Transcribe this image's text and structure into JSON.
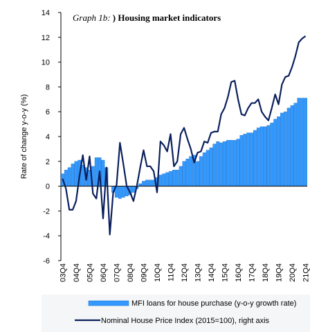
{
  "chart_data": {
    "type": "bar_line",
    "title_label": "Graph 1b:",
    "title": ") Housing market indicators",
    "y_label": "Rate of change y-o-y (%)",
    "categories": [
      "03Q4",
      null,
      null,
      null,
      "04Q4",
      null,
      null,
      null,
      "05Q4",
      null,
      null,
      null,
      "06Q4",
      null,
      null,
      null,
      "07Q4",
      null,
      null,
      null,
      "08Q4",
      null,
      null,
      null,
      "09Q4",
      null,
      null,
      null,
      "10Q4",
      null,
      null,
      null,
      "11Q4",
      null,
      null,
      null,
      "12Q4",
      null,
      null,
      null,
      "13Q4",
      null,
      null,
      null,
      "14Q4",
      null,
      null,
      null,
      "15Q4",
      null,
      null,
      null,
      "16Q4",
      null,
      null,
      null,
      "17Q4",
      null,
      null,
      null,
      "18Q4",
      null,
      null,
      null,
      "19Q4",
      null,
      null,
      null,
      "20Q4",
      null,
      null,
      null,
      "21Q4"
    ],
    "series": [
      {
        "name": "MFI loans for house purchase (y-o-y growth rate)",
        "kind": "bar",
        "color": "#3399ff",
        "values": [
          1.0,
          1.3,
          1.5,
          1.8,
          2.0,
          2.1,
          1.7,
          1.5,
          1.3,
          1.6,
          2.3,
          2.3,
          2.1,
          1.5,
          0.0,
          -0.5,
          -0.9,
          -1.0,
          -0.9,
          -0.8,
          -0.7,
          -0.5,
          -0.2,
          0.2,
          0.4,
          0.5,
          0.5,
          0.5,
          0.7,
          0.9,
          1.0,
          1.1,
          1.2,
          1.3,
          1.3,
          1.6,
          2.0,
          2.2,
          2.4,
          2.5,
          2.0,
          2.4,
          2.7,
          2.9,
          3.1,
          3.4,
          3.6,
          3.5,
          3.6,
          3.7,
          3.7,
          3.7,
          3.8,
          4.1,
          4.2,
          4.3,
          4.3,
          4.5,
          4.7,
          4.8,
          4.8,
          4.9,
          5.1,
          5.4,
          5.6,
          5.9,
          6.0,
          6.3,
          6.5,
          6.7,
          7.1,
          7.1,
          7.1
        ]
      },
      {
        "name": "Nominal House Price Index (2015=100), right axis",
        "kind": "line",
        "color": "#0a1f5c",
        "values": [
          0.6,
          -0.2,
          -1.9,
          -1.9,
          -1.2,
          0.8,
          2.5,
          0.5,
          2.4,
          -0.6,
          -1.0,
          1.2,
          -2.6,
          1.5,
          -3.9,
          -0.5,
          0.1,
          3.5,
          1.8,
          0.0,
          -0.5,
          -1.2,
          0.0,
          1.5,
          2.9,
          1.6,
          1.6,
          1.2,
          -0.5,
          3.6,
          3.3,
          2.8,
          4.2,
          1.6,
          2.0,
          4.2,
          4.7,
          3.8,
          3.0,
          1.9,
          2.7,
          2.8,
          3.6,
          3.5,
          4.3,
          4.4,
          4.4,
          5.8,
          6.3,
          7.2,
          8.4,
          8.5,
          7.0,
          5.8,
          5.7,
          6.3,
          6.7,
          6.7,
          7.0,
          6.0,
          5.6,
          5.3,
          6.3,
          7.4,
          6.6,
          8.2,
          8.8,
          8.9,
          9.6,
          10.5,
          11.6,
          11.9,
          12.1
        ]
      }
    ],
    "ylim": [
      -6,
      14
    ],
    "yticks": [
      -6,
      -4,
      -2,
      0,
      2,
      4,
      6,
      8,
      10,
      12,
      14
    ]
  }
}
